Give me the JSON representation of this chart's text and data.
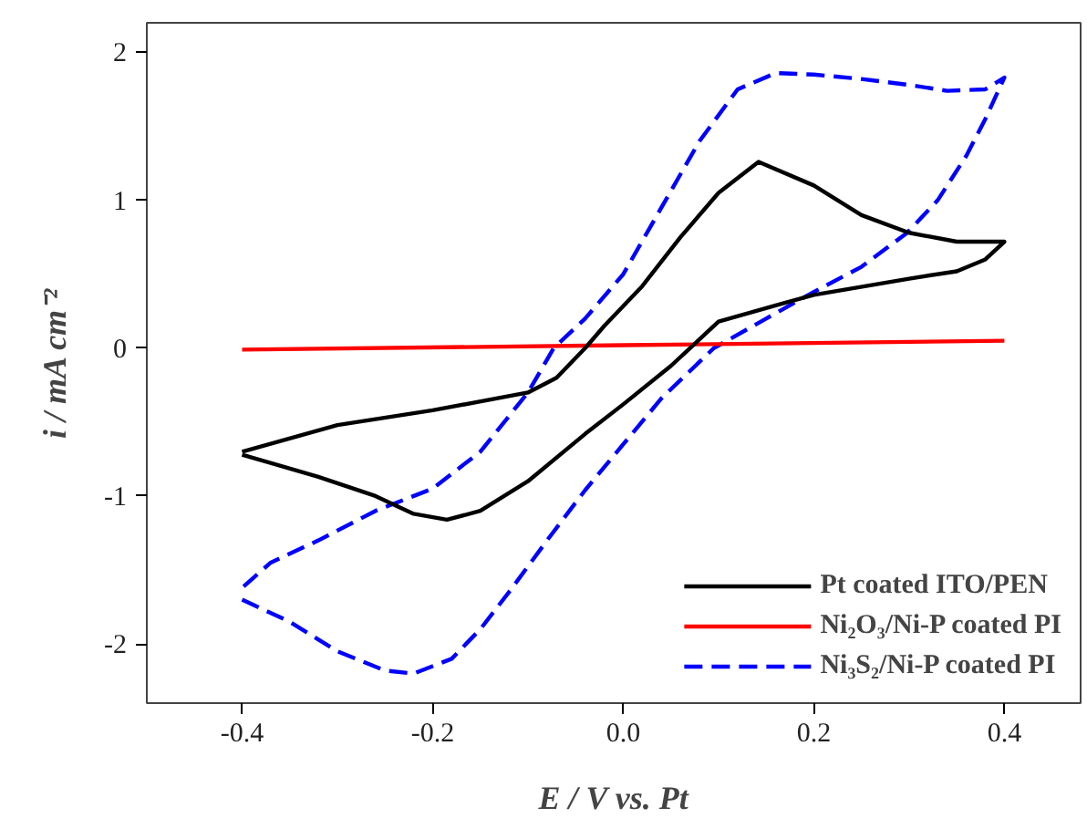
{
  "chart_data": {
    "type": "line",
    "xlabel": "E / V vs. Pt",
    "ylabel": "i / mA cm⁻²",
    "xlim": [
      -0.5,
      0.48
    ],
    "ylim": [
      -2.4,
      2.2
    ],
    "xticks": [
      -0.4,
      -0.2,
      {
        "value": 0,
        "label": "0.0"
      },
      0.2,
      0.4
    ],
    "yticks": [
      -2,
      -1,
      0,
      1,
      2
    ],
    "grid": false,
    "legend": "bottom right",
    "marker": "none",
    "series": [
      {
        "name": "Pt coated ITO/PEN",
        "color": "#000000",
        "line_style": "solid",
        "x": [
          -0.4,
          -0.3,
          -0.2,
          -0.1,
          -0.07,
          -0.04,
          -0.02,
          0.02,
          0.06,
          0.1,
          0.142,
          0.2,
          0.25,
          0.3,
          0.35,
          0.4,
          0.38,
          0.35,
          0.3,
          0.2,
          0.166,
          0.1,
          0.07,
          0.05,
          0.0,
          -0.04,
          -0.1,
          -0.15,
          -0.185,
          -0.22,
          -0.26,
          -0.32,
          -0.4
        ],
        "values": [
          -0.7,
          -0.52,
          -0.42,
          -0.3,
          -0.2,
          0.0,
          0.15,
          0.42,
          0.75,
          1.05,
          1.26,
          1.1,
          0.9,
          0.78,
          0.72,
          0.72,
          0.6,
          0.52,
          0.47,
          0.36,
          0.3,
          0.18,
          0.0,
          -0.12,
          -0.38,
          -0.58,
          -0.9,
          -1.1,
          -1.16,
          -1.12,
          -1.0,
          -0.87,
          -0.72
        ]
      },
      {
        "name": "Ni₂O₃/Ni-P coated PI",
        "color": "#ff0000",
        "line_style": "solid",
        "x": [
          -0.4,
          0.0,
          0.4
        ],
        "values": [
          -0.01,
          0.02,
          0.05
        ]
      },
      {
        "name": "Ni₃S₂/Ni-P coated PI",
        "color": "#0000ff",
        "line_style": "dashed",
        "x": [
          -0.4,
          -0.35,
          -0.3,
          -0.25,
          -0.22,
          -0.18,
          -0.15,
          -0.12,
          -0.08,
          -0.04,
          0.0,
          0.04,
          0.095,
          0.15,
          0.2,
          0.25,
          0.298,
          0.33,
          0.36,
          0.38,
          0.4,
          0.38,
          0.34,
          0.3,
          0.25,
          0.2,
          0.16,
          0.12,
          0.08,
          0.04,
          0.0,
          -0.04,
          -0.073,
          -0.1,
          -0.15,
          -0.2,
          -0.26,
          -0.32,
          -0.37,
          -0.4
        ],
        "values": [
          -1.7,
          -1.85,
          -2.05,
          -2.18,
          -2.2,
          -2.1,
          -1.9,
          -1.65,
          -1.3,
          -0.96,
          -0.65,
          -0.34,
          0.0,
          0.2,
          0.38,
          0.55,
          0.78,
          1.0,
          1.3,
          1.55,
          1.83,
          1.75,
          1.74,
          1.78,
          1.82,
          1.85,
          1.86,
          1.75,
          1.4,
          0.95,
          0.5,
          0.2,
          0.0,
          -0.3,
          -0.7,
          -0.95,
          -1.1,
          -1.3,
          -1.45,
          -1.62
        ]
      }
    ]
  }
}
